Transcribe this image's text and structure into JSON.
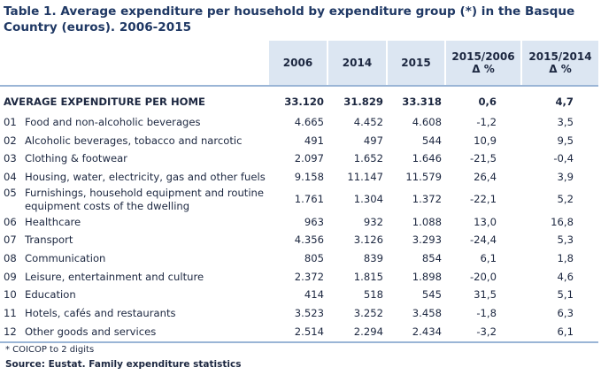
{
  "title": "Table 1. Average expenditure per household by expenditure group (*) in the Basque Country (euros). 2006-2015",
  "table": {
    "columns": [
      {
        "label": "2006"
      },
      {
        "label": "2014"
      },
      {
        "label": "2015"
      },
      {
        "label": "2015/2006",
        "sub": "Δ %"
      },
      {
        "label": "2015/2014",
        "sub": "Δ %"
      }
    ],
    "rows": [
      {
        "label": "AVERAGE EXPENDITURE PER HOME",
        "cells": [
          "33.120",
          "31.829",
          "33.318",
          "0,6",
          "4,7"
        ]
      },
      {
        "code": "01",
        "label": "Food and non-alcoholic beverages",
        "cells": [
          "4.665",
          "4.452",
          "4.608",
          "-1,2",
          "3,5"
        ]
      },
      {
        "code": "02",
        "label": "Alcoholic beverages, tobacco and narcotic",
        "cells": [
          "491",
          "497",
          "544",
          "10,9",
          "9,5"
        ]
      },
      {
        "code": "03",
        "label": "Clothing & footwear",
        "cells": [
          "2.097",
          "1.652",
          "1.646",
          "-21,5",
          "-0,4"
        ]
      },
      {
        "code": "04",
        "label": "Housing, water, electricity, gas and other fuels",
        "cells": [
          "9.158",
          "11.147",
          "11.579",
          "26,4",
          "3,9"
        ]
      },
      {
        "code": "05",
        "label": "Furnishings, household equipment and routine equipment costs of the dwelling",
        "cells": [
          "1.761",
          "1.304",
          "1.372",
          "-22,1",
          "5,2"
        ]
      },
      {
        "code": "06",
        "label": "Healthcare",
        "cells": [
          "963",
          "932",
          "1.088",
          "13,0",
          "16,8"
        ]
      },
      {
        "code": "07",
        "label": "Transport",
        "cells": [
          "4.356",
          "3.126",
          "3.293",
          "-24,4",
          "5,3"
        ]
      },
      {
        "code": "08",
        "label": "Communication",
        "cells": [
          "805",
          "839",
          "854",
          "6,1",
          "1,8"
        ]
      },
      {
        "code": "09",
        "label": "Leisure, entertainment and culture",
        "cells": [
          "2.372",
          "1.815",
          "1.898",
          "-20,0",
          "4,6"
        ]
      },
      {
        "code": "10",
        "label": "Education",
        "cells": [
          "414",
          "518",
          "545",
          "31,5",
          "5,1"
        ]
      },
      {
        "code": "11",
        "label": "Hotels, cafés and restaurants",
        "cells": [
          "3.523",
          "3.252",
          "3.458",
          "-1,8",
          "6,3"
        ]
      },
      {
        "code": "12",
        "label": "Other goods and services",
        "cells": [
          "2.514",
          "2.294",
          "2.434",
          "-3,2",
          "6,1"
        ]
      }
    ]
  },
  "footnote": "* COICOP to 2 digits",
  "source": "Source: Eustat. Family expenditure statistics"
}
